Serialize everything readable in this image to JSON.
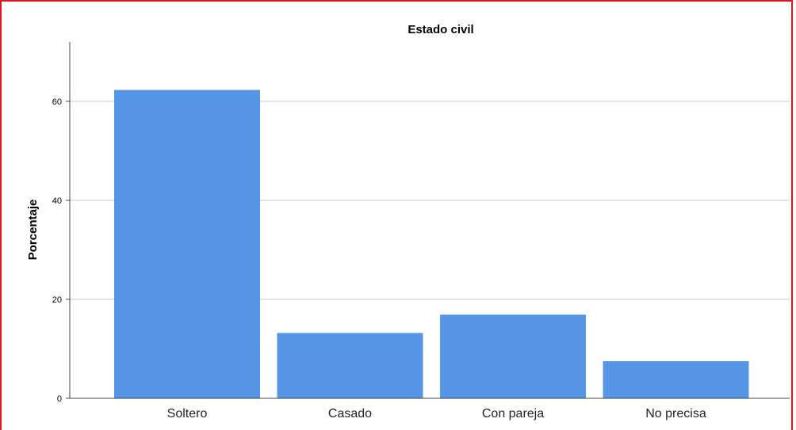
{
  "chart_data": {
    "type": "bar",
    "title": "Estado civil",
    "xlabel": "",
    "ylabel": "Porcentaje",
    "categories": [
      "Soltero",
      "Casado",
      "Con pareja",
      "No precisa"
    ],
    "values": [
      62.3,
      13.2,
      16.9,
      7.5
    ],
    "ylim": [
      0,
      72
    ],
    "yticks": [
      0,
      20,
      40,
      60
    ],
    "grid": true,
    "bar_color": "#5596e6",
    "grid_color": "#c8c8c8",
    "frame_color": "#e0141e"
  }
}
